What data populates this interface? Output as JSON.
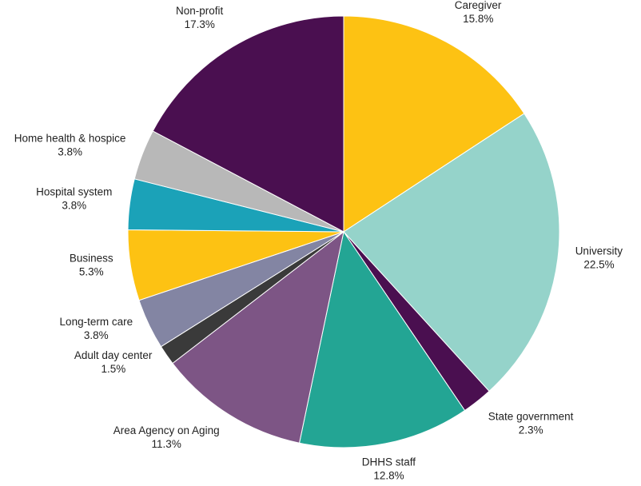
{
  "chart_data": {
    "type": "pie",
    "title": "",
    "start_angle_deg": 0,
    "direction": "clockwise",
    "slices": [
      {
        "label": "Caregiver",
        "value": 15.8,
        "value_label": "15.8%",
        "color": "#FDC213"
      },
      {
        "label": "University",
        "value": 22.5,
        "value_label": "22.5%",
        "color": "#95D3CA"
      },
      {
        "label": "State government",
        "value": 2.3,
        "value_label": "2.3%",
        "color": "#4A0F50"
      },
      {
        "label": "DHHS staff",
        "value": 12.8,
        "value_label": "12.8%",
        "color": "#23A594"
      },
      {
        "label": "Area Agency on Aging",
        "value": 11.3,
        "value_label": "11.3%",
        "color": "#7D5585"
      },
      {
        "label": "Adult day center",
        "value": 1.5,
        "value_label": "1.5%",
        "color": "#3A3A3A"
      },
      {
        "label": "Long-term care",
        "value": 3.8,
        "value_label": "3.8%",
        "color": "#8385A3"
      },
      {
        "label": "Business",
        "value": 5.3,
        "value_label": "5.3%",
        "color": "#FDC213"
      },
      {
        "label": "Hospital system",
        "value": 3.8,
        "value_label": "3.8%",
        "color": "#1BA2B8"
      },
      {
        "label": "Home health & hospice",
        "value": 3.8,
        "value_label": "3.8%",
        "color": "#B8B8B8"
      },
      {
        "label": "Non-profit",
        "value": 17.3,
        "value_label": "17.3%",
        "color": "#4A0F50"
      }
    ]
  }
}
